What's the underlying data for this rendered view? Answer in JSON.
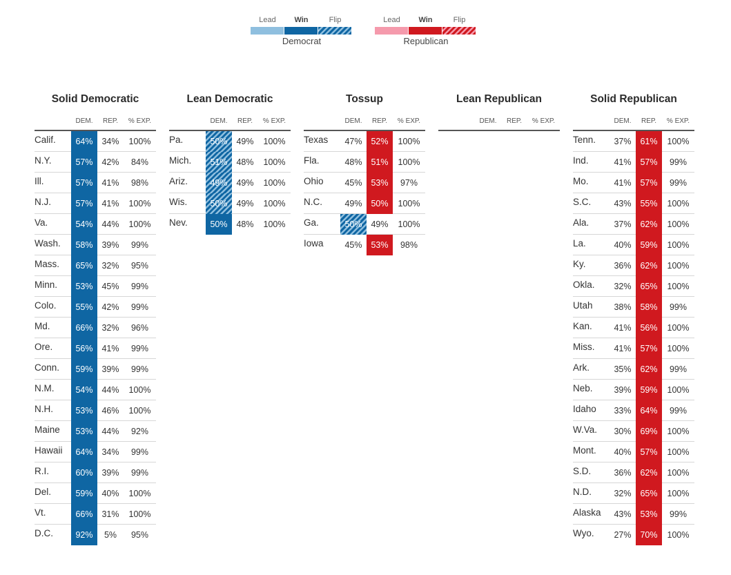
{
  "legend": {
    "democrat": {
      "lead": "Lead",
      "win": "Win",
      "flip": "Flip",
      "party": "Democrat"
    },
    "republican": {
      "lead": "Lead",
      "win": "Win",
      "flip": "Flip",
      "party": "Republican"
    }
  },
  "colors": {
    "dem_lead": "#8fbfdf",
    "dem_win": "#0f66a3",
    "rep_lead": "#f59aac",
    "rep_win": "#d0191f"
  },
  "chart_data": {
    "type": "table",
    "headers": {
      "dem": "DEM.",
      "rep": "REP.",
      "exp": "% EXP."
    },
    "groups": [
      {
        "title": "Solid Democratic",
        "rows": [
          {
            "state": "Calif.",
            "dem": "64%",
            "rep": "34%",
            "exp": "100%",
            "hl": "dem",
            "style": "win"
          },
          {
            "state": "N.Y.",
            "dem": "57%",
            "rep": "42%",
            "exp": "84%",
            "hl": "dem",
            "style": "win"
          },
          {
            "state": "Ill.",
            "dem": "57%",
            "rep": "41%",
            "exp": "98%",
            "hl": "dem",
            "style": "win"
          },
          {
            "state": "N.J.",
            "dem": "57%",
            "rep": "41%",
            "exp": "100%",
            "hl": "dem",
            "style": "win"
          },
          {
            "state": "Va.",
            "dem": "54%",
            "rep": "44%",
            "exp": "100%",
            "hl": "dem",
            "style": "win"
          },
          {
            "state": "Wash.",
            "dem": "58%",
            "rep": "39%",
            "exp": "99%",
            "hl": "dem",
            "style": "win"
          },
          {
            "state": "Mass.",
            "dem": "65%",
            "rep": "32%",
            "exp": "95%",
            "hl": "dem",
            "style": "win"
          },
          {
            "state": "Minn.",
            "dem": "53%",
            "rep": "45%",
            "exp": "99%",
            "hl": "dem",
            "style": "win"
          },
          {
            "state": "Colo.",
            "dem": "55%",
            "rep": "42%",
            "exp": "99%",
            "hl": "dem",
            "style": "win"
          },
          {
            "state": "Md.",
            "dem": "66%",
            "rep": "32%",
            "exp": "96%",
            "hl": "dem",
            "style": "win"
          },
          {
            "state": "Ore.",
            "dem": "56%",
            "rep": "41%",
            "exp": "99%",
            "hl": "dem",
            "style": "win"
          },
          {
            "state": "Conn.",
            "dem": "59%",
            "rep": "39%",
            "exp": "99%",
            "hl": "dem",
            "style": "win"
          },
          {
            "state": "N.M.",
            "dem": "54%",
            "rep": "44%",
            "exp": "100%",
            "hl": "dem",
            "style": "win"
          },
          {
            "state": "N.H.",
            "dem": "53%",
            "rep": "46%",
            "exp": "100%",
            "hl": "dem",
            "style": "win"
          },
          {
            "state": "Maine",
            "dem": "53%",
            "rep": "44%",
            "exp": "92%",
            "hl": "dem",
            "style": "win"
          },
          {
            "state": "Hawaii",
            "dem": "64%",
            "rep": "34%",
            "exp": "99%",
            "hl": "dem",
            "style": "win"
          },
          {
            "state": "R.I.",
            "dem": "60%",
            "rep": "39%",
            "exp": "99%",
            "hl": "dem",
            "style": "win"
          },
          {
            "state": "Del.",
            "dem": "59%",
            "rep": "40%",
            "exp": "100%",
            "hl": "dem",
            "style": "win"
          },
          {
            "state": "Vt.",
            "dem": "66%",
            "rep": "31%",
            "exp": "100%",
            "hl": "dem",
            "style": "win"
          },
          {
            "state": "D.C.",
            "dem": "92%",
            "rep": "5%",
            "exp": "95%",
            "hl": "dem",
            "style": "win"
          }
        ]
      },
      {
        "title": "Lean Democratic",
        "rows": [
          {
            "state": "Pa.",
            "dem": "50%",
            "rep": "49%",
            "exp": "100%",
            "hl": "dem",
            "style": "flip"
          },
          {
            "state": "Mich.",
            "dem": "51%",
            "rep": "48%",
            "exp": "100%",
            "hl": "dem",
            "style": "flip"
          },
          {
            "state": "Ariz.",
            "dem": "49%",
            "rep": "49%",
            "exp": "100%",
            "hl": "dem",
            "style": "flip"
          },
          {
            "state": "Wis.",
            "dem": "50%",
            "rep": "49%",
            "exp": "100%",
            "hl": "dem",
            "style": "flip"
          },
          {
            "state": "Nev.",
            "dem": "50%",
            "rep": "48%",
            "exp": "100%",
            "hl": "dem",
            "style": "win"
          }
        ]
      },
      {
        "title": "Tossup",
        "rows": [
          {
            "state": "Texas",
            "dem": "47%",
            "rep": "52%",
            "exp": "100%",
            "hl": "rep",
            "style": "win"
          },
          {
            "state": "Fla.",
            "dem": "48%",
            "rep": "51%",
            "exp": "100%",
            "hl": "rep",
            "style": "win"
          },
          {
            "state": "Ohio",
            "dem": "45%",
            "rep": "53%",
            "exp": "97%",
            "hl": "rep",
            "style": "win"
          },
          {
            "state": "N.C.",
            "dem": "49%",
            "rep": "50%",
            "exp": "100%",
            "hl": "rep",
            "style": "win"
          },
          {
            "state": "Ga.",
            "dem": "50%",
            "rep": "49%",
            "exp": "100%",
            "hl": "dem",
            "style": "flip"
          },
          {
            "state": "Iowa",
            "dem": "45%",
            "rep": "53%",
            "exp": "98%",
            "hl": "rep",
            "style": "win"
          }
        ]
      },
      {
        "title": "Lean Republican",
        "rows": []
      },
      {
        "title": "Solid Republican",
        "rows": [
          {
            "state": "Tenn.",
            "dem": "37%",
            "rep": "61%",
            "exp": "100%",
            "hl": "rep",
            "style": "win"
          },
          {
            "state": "Ind.",
            "dem": "41%",
            "rep": "57%",
            "exp": "99%",
            "hl": "rep",
            "style": "win"
          },
          {
            "state": "Mo.",
            "dem": "41%",
            "rep": "57%",
            "exp": "99%",
            "hl": "rep",
            "style": "win"
          },
          {
            "state": "S.C.",
            "dem": "43%",
            "rep": "55%",
            "exp": "100%",
            "hl": "rep",
            "style": "win"
          },
          {
            "state": "Ala.",
            "dem": "37%",
            "rep": "62%",
            "exp": "100%",
            "hl": "rep",
            "style": "win"
          },
          {
            "state": "La.",
            "dem": "40%",
            "rep": "59%",
            "exp": "100%",
            "hl": "rep",
            "style": "win"
          },
          {
            "state": "Ky.",
            "dem": "36%",
            "rep": "62%",
            "exp": "100%",
            "hl": "rep",
            "style": "win"
          },
          {
            "state": "Okla.",
            "dem": "32%",
            "rep": "65%",
            "exp": "100%",
            "hl": "rep",
            "style": "win"
          },
          {
            "state": "Utah",
            "dem": "38%",
            "rep": "58%",
            "exp": "99%",
            "hl": "rep",
            "style": "win"
          },
          {
            "state": "Kan.",
            "dem": "41%",
            "rep": "56%",
            "exp": "100%",
            "hl": "rep",
            "style": "win"
          },
          {
            "state": "Miss.",
            "dem": "41%",
            "rep": "57%",
            "exp": "100%",
            "hl": "rep",
            "style": "win"
          },
          {
            "state": "Ark.",
            "dem": "35%",
            "rep": "62%",
            "exp": "99%",
            "hl": "rep",
            "style": "win"
          },
          {
            "state": "Neb.",
            "dem": "39%",
            "rep": "59%",
            "exp": "100%",
            "hl": "rep",
            "style": "win"
          },
          {
            "state": "Idaho",
            "dem": "33%",
            "rep": "64%",
            "exp": "99%",
            "hl": "rep",
            "style": "win"
          },
          {
            "state": "W.Va.",
            "dem": "30%",
            "rep": "69%",
            "exp": "100%",
            "hl": "rep",
            "style": "win"
          },
          {
            "state": "Mont.",
            "dem": "40%",
            "rep": "57%",
            "exp": "100%",
            "hl": "rep",
            "style": "win"
          },
          {
            "state": "S.D.",
            "dem": "36%",
            "rep": "62%",
            "exp": "100%",
            "hl": "rep",
            "style": "win"
          },
          {
            "state": "N.D.",
            "dem": "32%",
            "rep": "65%",
            "exp": "100%",
            "hl": "rep",
            "style": "win"
          },
          {
            "state": "Alaska",
            "dem": "43%",
            "rep": "53%",
            "exp": "99%",
            "hl": "rep",
            "style": "win"
          },
          {
            "state": "Wyo.",
            "dem": "27%",
            "rep": "70%",
            "exp": "100%",
            "hl": "rep",
            "style": "win"
          }
        ]
      }
    ]
  }
}
